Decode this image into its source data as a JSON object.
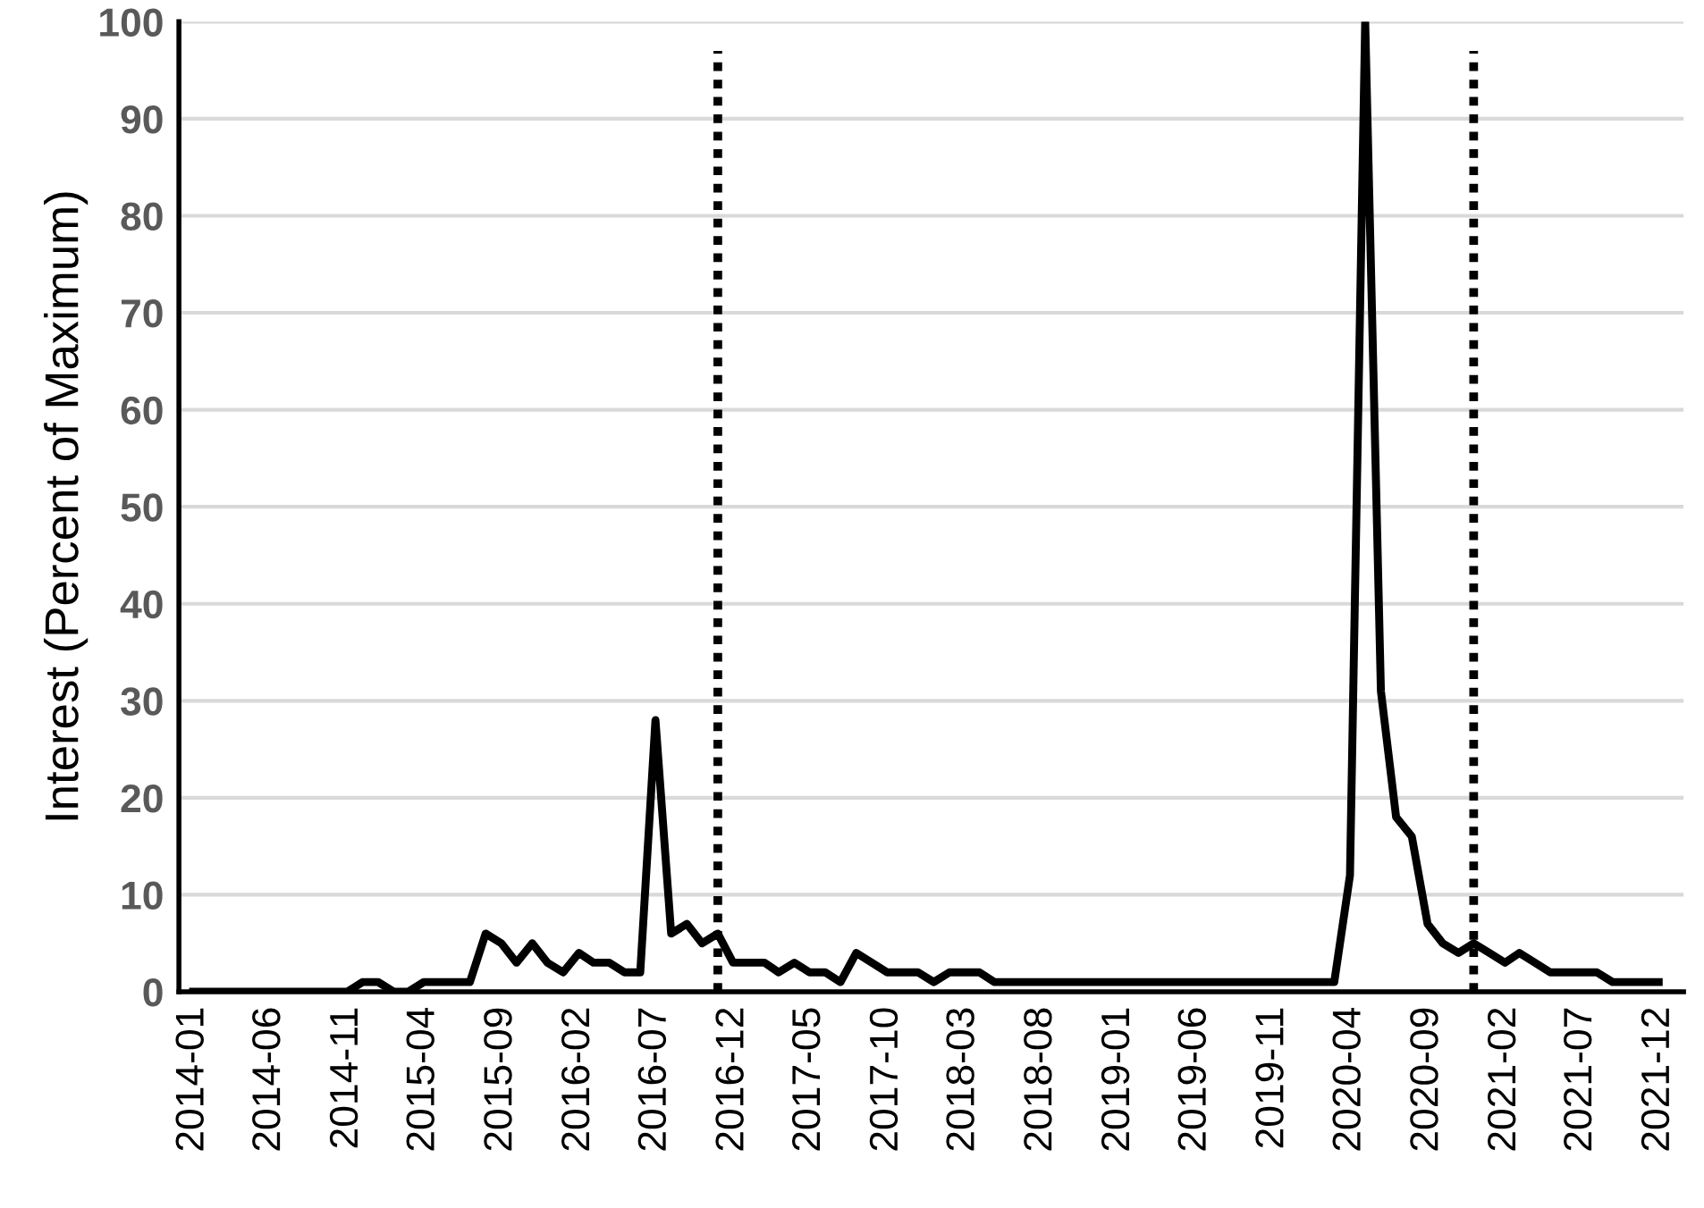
{
  "chart_data": {
    "type": "line",
    "ylabel": "Interest (Percent of Maximum)",
    "x": [
      "2014-01",
      "2014-02",
      "2014-03",
      "2014-04",
      "2014-05",
      "2014-06",
      "2014-07",
      "2014-08",
      "2014-09",
      "2014-10",
      "2014-11",
      "2014-12",
      "2015-01",
      "2015-02",
      "2015-03",
      "2015-04",
      "2015-05",
      "2015-06",
      "2015-07",
      "2015-08",
      "2015-09",
      "2015-10",
      "2015-11",
      "2015-12",
      "2016-01",
      "2016-02",
      "2016-03",
      "2016-04",
      "2016-05",
      "2016-06",
      "2016-07",
      "2016-08",
      "2016-09",
      "2016-10",
      "2016-11",
      "2016-12",
      "2017-01",
      "2017-02",
      "2017-03",
      "2017-04",
      "2017-05",
      "2017-06",
      "2017-07",
      "2017-08",
      "2017-09",
      "2017-10",
      "2017-11",
      "2017-12",
      "2018-01",
      "2018-02",
      "2018-03",
      "2018-04",
      "2018-05",
      "2018-06",
      "2018-07",
      "2018-08",
      "2018-09",
      "2018-10",
      "2018-11",
      "2018-12",
      "2019-01",
      "2019-02",
      "2019-03",
      "2019-04",
      "2019-05",
      "2019-06",
      "2019-07",
      "2019-08",
      "2019-09",
      "2019-10",
      "2019-11",
      "2019-12",
      "2020-01",
      "2020-02",
      "2020-03",
      "2020-04",
      "2020-05",
      "2020-06",
      "2020-07",
      "2020-08",
      "2020-09",
      "2020-10",
      "2020-11",
      "2020-12",
      "2021-01",
      "2021-02",
      "2021-03",
      "2021-04",
      "2021-05",
      "2021-06",
      "2021-07",
      "2021-08",
      "2021-09",
      "2021-10",
      "2021-11",
      "2021-12"
    ],
    "series": [
      {
        "color": "#000000",
        "values": [
          0,
          0,
          0,
          0,
          0,
          0,
          0,
          0,
          0,
          0,
          0,
          1,
          1,
          0,
          0,
          1,
          1,
          1,
          1,
          6,
          5,
          3,
          5,
          3,
          2,
          4,
          3,
          3,
          2,
          2,
          28,
          6,
          7,
          5,
          6,
          3,
          3,
          3,
          2,
          3,
          2,
          2,
          1,
          4,
          3,
          2,
          2,
          2,
          1,
          2,
          2,
          2,
          1,
          1,
          1,
          1,
          1,
          1,
          1,
          1,
          1,
          1,
          1,
          1,
          1,
          1,
          1,
          1,
          1,
          1,
          1,
          1,
          1,
          1,
          1,
          12,
          100,
          31,
          18,
          16,
          7,
          5,
          4,
          5,
          4,
          3,
          4,
          3,
          2,
          2,
          2,
          2,
          1,
          1,
          1,
          1
        ]
      }
    ],
    "xlim": [
      "2013-12-04",
      "2022-01-19"
    ],
    "xticks": [
      "2014-01",
      "2014-06",
      "2014-11",
      "2015-04",
      "2015-09",
      "2016-02",
      "2016-07",
      "2016-12",
      "2017-05",
      "2017-10",
      "2018-03",
      "2018-08",
      "2019-01",
      "2019-06",
      "2019-11",
      "2020-04",
      "2020-09",
      "2021-02",
      "2021-07",
      "2021-12"
    ],
    "ylim": [
      0,
      100
    ],
    "yticks": [
      0,
      10,
      20,
      30,
      40,
      50,
      60,
      70,
      80,
      90,
      100
    ],
    "grid": "y",
    "legend": false,
    "marker": "none",
    "line_style": "solid",
    "ref_lines": [
      {
        "axis": "x",
        "value": "2016-11",
        "color": "#000000",
        "line_style": "dotted"
      },
      {
        "axis": "x",
        "value": "2020-12",
        "color": "#000000",
        "line_style": "dotted"
      }
    ]
  }
}
